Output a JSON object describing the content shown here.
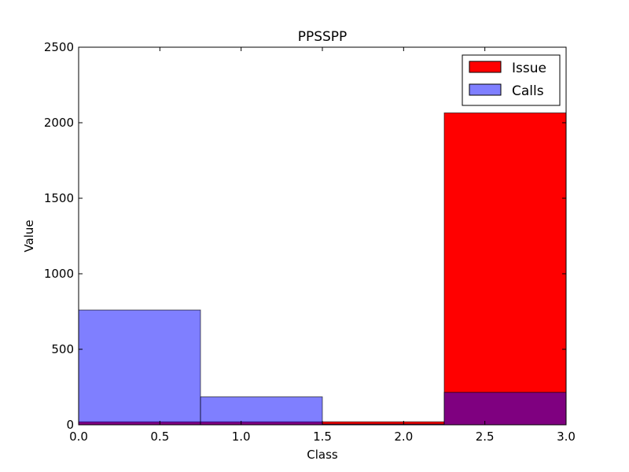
{
  "chart_data": {
    "type": "histogram",
    "title": "PPSSPP",
    "xlabel": "Class",
    "ylabel": "Value",
    "xlim": [
      0.0,
      3.0
    ],
    "ylim": [
      0,
      2500
    ],
    "bin_edges": [
      0.0,
      0.75,
      1.5,
      2.25,
      3.0
    ],
    "series": [
      {
        "name": "Issue",
        "values": [
          20,
          20,
          20,
          2065
        ],
        "color": "#ff0000",
        "alpha": 1.0
      },
      {
        "name": "Calls",
        "values": [
          760,
          185,
          5,
          215
        ],
        "color": "#0000ff",
        "alpha": 0.5
      }
    ],
    "xticks": [
      0.0,
      0.5,
      1.0,
      1.5,
      2.0,
      2.5,
      3.0
    ],
    "xtick_labels": [
      "0.0",
      "0.5",
      "1.0",
      "1.5",
      "2.0",
      "2.5",
      "3.0"
    ],
    "yticks": [
      0,
      500,
      1000,
      1500,
      2000,
      2500
    ],
    "ytick_labels": [
      "0",
      "500",
      "1000",
      "1500",
      "2000",
      "2500"
    ],
    "legend": {
      "location": "top-right",
      "entries": [
        "Issue",
        "Calls"
      ]
    },
    "grid": false
  }
}
